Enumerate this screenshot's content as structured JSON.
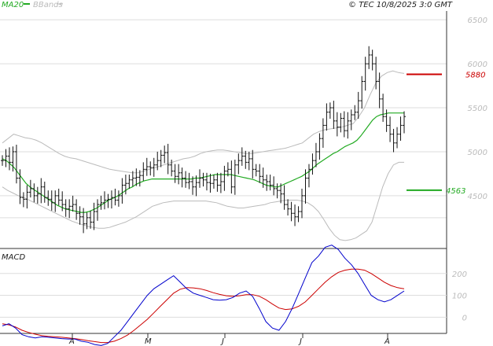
{
  "header": {
    "legend_ma": "MA20",
    "legend_bb": "BBands",
    "copyright": "© TEC 10/8/2025 3:0 GMT"
  },
  "colors": {
    "ma": "#22aa22",
    "bbands": "#bbbbbb",
    "price": "#111111",
    "resistance": "#cc0000",
    "support": "#22aa22",
    "macd": "#0000cc",
    "signal": "#cc0000",
    "grid": "#dddddd"
  },
  "chart_data": [
    {
      "type": "ohlc",
      "title": "",
      "ylim": [
        3900,
        6600
      ],
      "y_ticks": [
        4500,
        5000,
        5500,
        6000,
        6500
      ],
      "x_month_labels": [
        "A",
        "M",
        "J",
        "J",
        "A"
      ],
      "levels": {
        "resistance": 5880,
        "support": 4563
      },
      "level_labels": {
        "resistance": "5880",
        "support": "4563"
      },
      "legend": [
        "MA20",
        "BBands"
      ],
      "grid": true,
      "closes": [
        4900,
        4950,
        4880,
        5000,
        4700,
        4480,
        4460,
        4540,
        4580,
        4500,
        4520,
        4600,
        4480,
        4460,
        4420,
        4500,
        4450,
        4400,
        4350,
        4380,
        4400,
        4300,
        4260,
        4180,
        4250,
        4200,
        4320,
        4400,
        4420,
        4450,
        4460,
        4480,
        4450,
        4500,
        4620,
        4640,
        4680,
        4700,
        4710,
        4730,
        4800,
        4830,
        4820,
        4850,
        4900,
        4960,
        4990,
        4850,
        4780,
        4720,
        4760,
        4700,
        4650,
        4660,
        4600,
        4650,
        4700,
        4680,
        4650,
        4640,
        4680,
        4620,
        4660,
        4780,
        4800,
        4600,
        4850,
        4900,
        4950,
        4880,
        4920,
        4800,
        4780,
        4720,
        4680,
        4660,
        4620,
        4580,
        4560,
        4520,
        4400,
        4350,
        4300,
        4260,
        4320,
        4500,
        4700,
        4800,
        4900,
        5000,
        5150,
        5300,
        5450,
        5500,
        5350,
        5280,
        5380,
        5240,
        5350,
        5420,
        5450,
        5580,
        5800,
        6000,
        6100,
        6000,
        5800,
        5600,
        5400,
        5300,
        5200,
        5100,
        5200,
        5300,
        5400
      ],
      "ma20": [
        4920,
        4900,
        4860,
        4820,
        4760,
        4700,
        4640,
        4600,
        4570,
        4540,
        4510,
        4480,
        4450,
        4420,
        4390,
        4370,
        4350,
        4340,
        4330,
        4320,
        4310,
        4310,
        4320,
        4340,
        4360,
        4390,
        4420,
        4450,
        4470,
        4490,
        4520,
        4550,
        4580,
        4600,
        4630,
        4650,
        4670,
        4680,
        4690,
        4690,
        4690,
        4690,
        4690,
        4690,
        4690,
        4690,
        4690,
        4690,
        4690,
        4700,
        4700,
        4710,
        4720,
        4730,
        4740,
        4740,
        4740,
        4740,
        4740,
        4730,
        4720,
        4710,
        4700,
        4690,
        4680,
        4660,
        4640,
        4620,
        4610,
        4600,
        4600,
        4620,
        4640,
        4660,
        4680,
        4700,
        4720,
        4750,
        4780,
        4820,
        4860,
        4890,
        4920,
        4950,
        4980,
        5000,
        5030,
        5060,
        5080,
        5100,
        5130,
        5180,
        5240,
        5300,
        5360,
        5400,
        5420,
        5430,
        5440,
        5440,
        5440,
        5440,
        5440
      ],
      "bb_upper": [
        5100,
        5150,
        5200,
        5180,
        5160,
        5150,
        5130,
        5100,
        5060,
        5020,
        4980,
        4950,
        4930,
        4920,
        4900,
        4880,
        4860,
        4840,
        4820,
        4800,
        4790,
        4780,
        4770,
        4760,
        4760,
        4780,
        4800,
        4820,
        4840,
        4860,
        4880,
        4900,
        4920,
        4930,
        4950,
        4980,
        5000,
        5010,
        5020,
        5020,
        5010,
        5000,
        4990,
        4980,
        4980,
        4990,
        5000,
        5010,
        5020,
        5030,
        5040,
        5060,
        5080,
        5100,
        5150,
        5200,
        5230,
        5250,
        5260,
        5270,
        5280,
        5300,
        5320,
        5400,
        5500,
        5650,
        5780,
        5860,
        5900,
        5920,
        5900,
        5890
      ],
      "bb_lower": [
        4600,
        4560,
        4530,
        4500,
        4480,
        4450,
        4420,
        4390,
        4360,
        4330,
        4300,
        4270,
        4240,
        4210,
        4190,
        4170,
        4150,
        4140,
        4130,
        4130,
        4140,
        4160,
        4180,
        4200,
        4230,
        4260,
        4300,
        4340,
        4380,
        4400,
        4420,
        4430,
        4440,
        4440,
        4440,
        4440,
        4440,
        4440,
        4440,
        4430,
        4420,
        4400,
        4380,
        4370,
        4360,
        4360,
        4370,
        4380,
        4390,
        4400,
        4420,
        4430,
        4440,
        4450,
        4450,
        4450,
        4440,
        4420,
        4380,
        4320,
        4230,
        4130,
        4050,
        4000,
        3990,
        4000,
        4020,
        4060,
        4100,
        4200,
        4400,
        4600,
        4750,
        4850,
        4880,
        4880
      ],
      "macd_ylim": [
        -60,
        300
      ],
      "macd_ticks": [
        0,
        100,
        200
      ],
      "macd": [
        -40,
        -30,
        -50,
        -80,
        -90,
        -95,
        -90,
        -92,
        -95,
        -98,
        -100,
        -100,
        -110,
        -115,
        -125,
        -130,
        -120,
        -90,
        -60,
        -20,
        20,
        60,
        100,
        130,
        150,
        170,
        190,
        160,
        130,
        110,
        100,
        90,
        80,
        78,
        80,
        90,
        110,
        120,
        95,
        40,
        -20,
        -50,
        -60,
        -20,
        40,
        110,
        180,
        250,
        280,
        320,
        330,
        310,
        270,
        240,
        200,
        150,
        100,
        80,
        70,
        80,
        100,
        120
      ],
      "signal": [
        -30,
        -35,
        -45,
        -60,
        -70,
        -78,
        -85,
        -88,
        -90,
        -92,
        -95,
        -98,
        -102,
        -108,
        -112,
        -116,
        -116,
        -110,
        -98,
        -82,
        -60,
        -35,
        -10,
        20,
        50,
        80,
        110,
        128,
        135,
        134,
        130,
        122,
        112,
        104,
        98,
        96,
        98,
        103,
        103,
        96,
        80,
        60,
        42,
        35,
        38,
        50,
        70,
        100,
        130,
        160,
        185,
        205,
        215,
        220,
        220,
        215,
        200,
        180,
        160,
        145,
        135,
        130
      ]
    }
  ]
}
